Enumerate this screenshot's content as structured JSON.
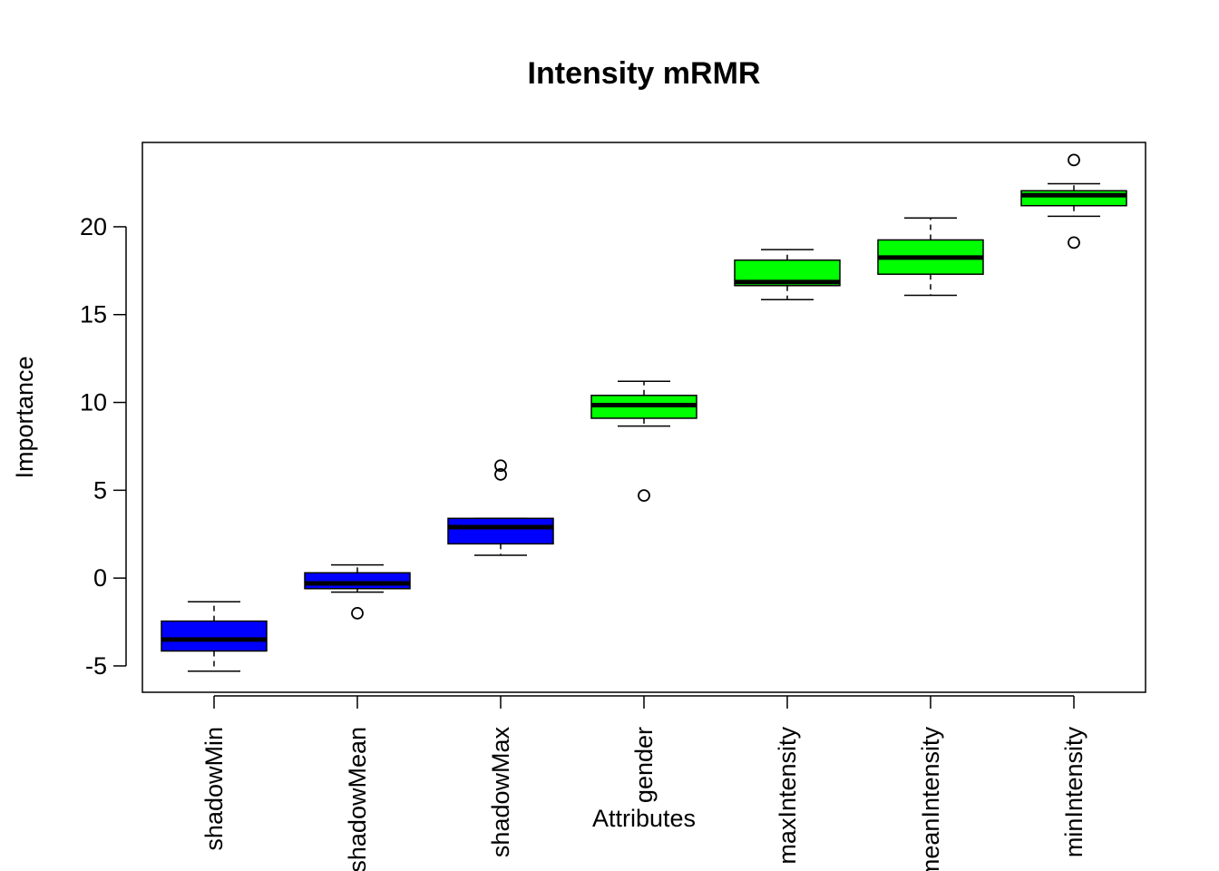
{
  "chart_data": {
    "type": "boxplot",
    "title": "Intensity mRMR",
    "xlabel": "Attributes",
    "ylabel": "Importance",
    "ylim": [
      -6.5,
      24.8
    ],
    "yticks": [
      -5,
      0,
      5,
      10,
      15,
      20
    ],
    "tick_labels_rotated": true,
    "grid": false,
    "legend": "none",
    "colors": {
      "shadow": "#0000ff",
      "confirmed": "#00ff00",
      "stroke": "#000000"
    },
    "boxes": [
      {
        "label": "shadowMin",
        "color": "#0000ff",
        "whisker_low": -5.3,
        "q1": -4.15,
        "median": -3.5,
        "q3": -2.45,
        "whisker_high": -1.35,
        "outliers": []
      },
      {
        "label": "shadowMean",
        "color": "#0000ff",
        "whisker_low": -0.8,
        "q1": -0.6,
        "median": -0.3,
        "q3": 0.3,
        "whisker_high": 0.75,
        "outliers": [
          -2.0
        ]
      },
      {
        "label": "shadowMax",
        "color": "#0000ff",
        "whisker_low": 1.3,
        "q1": 1.95,
        "median": 2.9,
        "q3": 3.4,
        "whisker_high": 3.4,
        "outliers": [
          5.9,
          6.4
        ]
      },
      {
        "label": "gender",
        "color": "#00ff00",
        "whisker_low": 8.65,
        "q1": 9.1,
        "median": 9.85,
        "q3": 10.4,
        "whisker_high": 11.2,
        "outliers": [
          4.7
        ]
      },
      {
        "label": "maxIntensity",
        "color": "#00ff00",
        "whisker_low": 15.85,
        "q1": 16.65,
        "median": 16.85,
        "q3": 18.1,
        "whisker_high": 18.7,
        "outliers": []
      },
      {
        "label": "meanIntensity",
        "color": "#00ff00",
        "whisker_low": 16.1,
        "q1": 17.3,
        "median": 18.25,
        "q3": 19.25,
        "whisker_high": 20.5,
        "outliers": []
      },
      {
        "label": "minIntensity",
        "color": "#00ff00",
        "whisker_low": 20.6,
        "q1": 21.2,
        "median": 21.8,
        "q3": 22.05,
        "whisker_high": 22.45,
        "outliers": [
          19.1,
          23.8
        ]
      }
    ]
  }
}
